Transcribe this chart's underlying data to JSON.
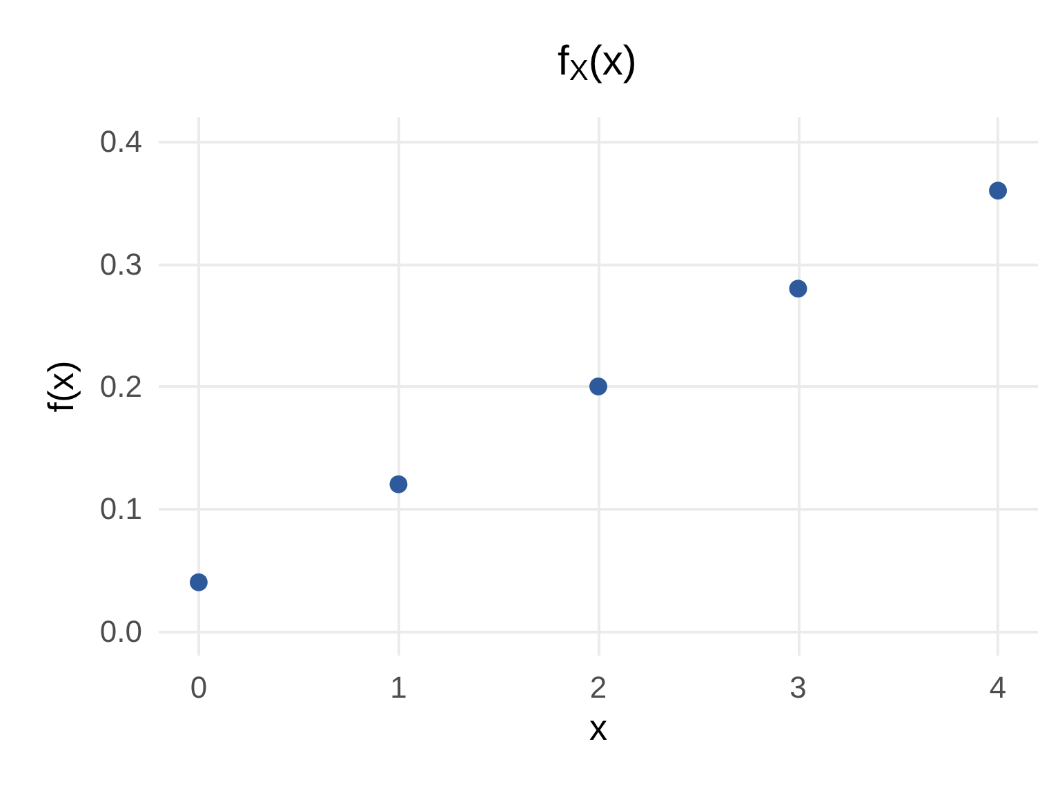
{
  "chart_data": {
    "type": "scatter",
    "title": "f$_{X}$(x)",
    "xlabel": "x",
    "ylabel": "f(x)",
    "x": [
      0,
      1,
      2,
      3,
      4
    ],
    "values": [
      0.04,
      0.12,
      0.2,
      0.28,
      0.36
    ],
    "color": "#2e5a9c",
    "xlim": [
      -0.2,
      4.2
    ],
    "xticks": [
      0,
      1,
      2,
      3,
      4
    ],
    "ylim": [
      -0.02,
      0.42
    ],
    "yticks": [
      {
        "value": 0,
        "label": "0.0"
      },
      {
        "value": 0.1,
        "label": "0.1"
      },
      {
        "value": 0.2,
        "label": "0.2"
      },
      {
        "value": 0.3,
        "label": "0.3"
      },
      {
        "value": 0.4,
        "label": "0.4"
      }
    ],
    "grid": true,
    "marker": "circle"
  }
}
